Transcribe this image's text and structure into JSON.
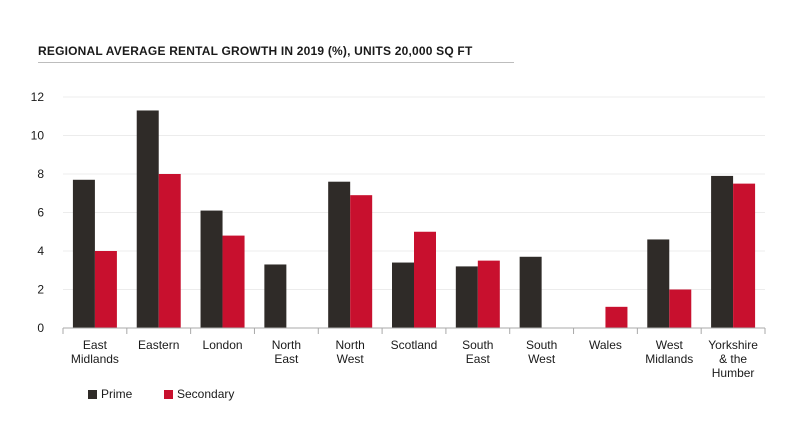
{
  "chart_data": {
    "type": "bar",
    "title": "REGIONAL AVERAGE RENTAL GROWTH IN 2019 (%), UNITS 20,000 SQ FT",
    "xlabel": "",
    "ylabel": "",
    "ylim": [
      0,
      12
    ],
    "yticks": [
      0,
      2,
      4,
      6,
      8,
      10,
      12
    ],
    "grid": true,
    "legend": "bottom-left",
    "categories": [
      [
        "East",
        "Midlands"
      ],
      [
        "Eastern"
      ],
      [
        "London"
      ],
      [
        "North",
        "East"
      ],
      [
        "North",
        "West"
      ],
      [
        "Scotland"
      ],
      [
        "South",
        "East"
      ],
      [
        "South",
        "West"
      ],
      [
        "Wales"
      ],
      [
        "West",
        "Midlands"
      ],
      [
        "Yorkshire",
        "& the",
        "Humber"
      ]
    ],
    "series": [
      {
        "name": "Prime",
        "color": "#2f2b28",
        "values": [
          7.7,
          11.3,
          6.1,
          3.3,
          7.6,
          3.4,
          3.2,
          3.7,
          0,
          4.6,
          7.9
        ]
      },
      {
        "name": "Secondary",
        "color": "#c8102e",
        "values": [
          4.0,
          8.0,
          4.8,
          0,
          6.9,
          5.0,
          3.5,
          0,
          1.1,
          2.0,
          7.5
        ]
      }
    ]
  }
}
